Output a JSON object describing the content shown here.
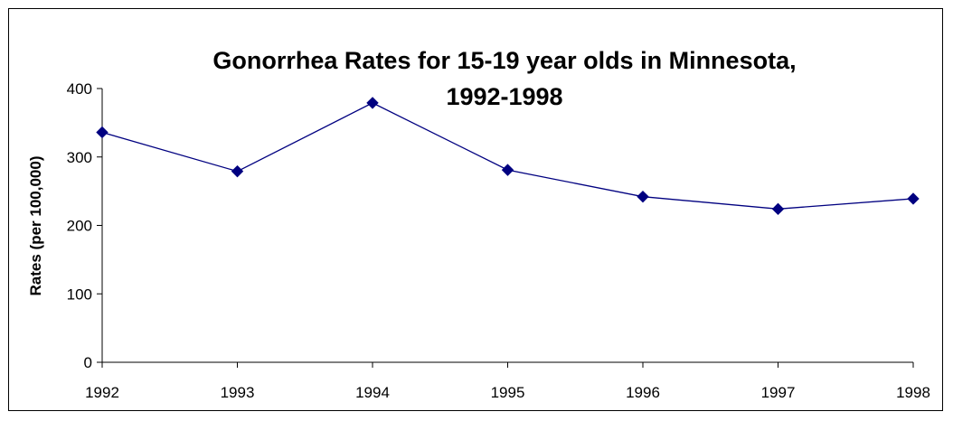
{
  "chart_data": {
    "type": "line",
    "title": [
      "Gonorrhea Rates for 15-19 year olds in Minnesota,",
      "1992-1998"
    ],
    "xlabel": "",
    "ylabel": "Rates (per 100,000)",
    "categories": [
      "1992",
      "1993",
      "1994",
      "1995",
      "1996",
      "1997",
      "1998"
    ],
    "series": [
      {
        "values": [
          336,
          279,
          379,
          281,
          242,
          224,
          239
        ],
        "color": "#000080",
        "marker": "diamond"
      }
    ],
    "ylim": [
      0,
      400
    ],
    "yticks": [
      0,
      100,
      200,
      300,
      400
    ],
    "grid": false,
    "legend": "none"
  }
}
